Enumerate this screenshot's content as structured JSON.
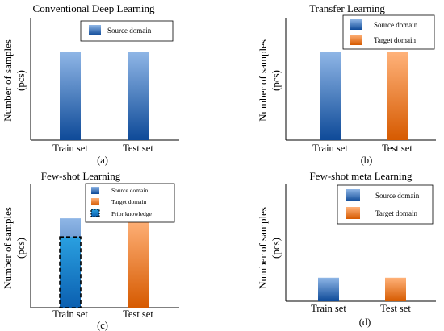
{
  "colors": {
    "source_top": "#8fb6e6",
    "source_bottom": "#0e4a98",
    "target_top": "#ffb27a",
    "target_bottom": "#d65a00",
    "prior_top": "#2aa0e0",
    "prior_bottom": "#0b5fb0"
  },
  "chart_data": [
    {
      "type": "bar",
      "title": "Conventional Deep Learning",
      "panel_label": "(a)",
      "ylabel_line1": "Number of samples",
      "ylabel_line2": "(pcs)",
      "categories": [
        "Train set",
        "Test set"
      ],
      "ylim": [
        0,
        1
      ],
      "legend_position": "top-center",
      "bars": [
        {
          "category": "Train set",
          "domain": "Source domain",
          "value": 0.72
        },
        {
          "category": "Test set",
          "domain": "Source domain",
          "value": 0.72
        }
      ],
      "legend": [
        {
          "label": "Source domain",
          "kind": "source"
        }
      ]
    },
    {
      "type": "bar",
      "title": "Transfer Learning",
      "panel_label": "(b)",
      "ylabel_line1": "Number of samples",
      "ylabel_line2": "(pcs)",
      "categories": [
        "Train set",
        "Test set"
      ],
      "ylim": [
        0,
        1
      ],
      "legend_position": "top-right",
      "bars": [
        {
          "category": "Train set",
          "domain": "Source domain",
          "value": 0.72
        },
        {
          "category": "Test set",
          "domain": "Target domain",
          "value": 0.72
        }
      ],
      "legend": [
        {
          "label": "Source domain",
          "kind": "source"
        },
        {
          "label": "Target domain",
          "kind": "target"
        }
      ]
    },
    {
      "type": "bar",
      "title": "Few-shot Learning",
      "panel_label": "(c)",
      "ylabel_line1": "Number of samples",
      "ylabel_line2": "(pcs)",
      "categories": [
        "Train set",
        "Test set"
      ],
      "ylim": [
        0,
        1
      ],
      "legend_position": "top-center",
      "bars": [
        {
          "category": "Train set",
          "domain": "Source domain",
          "value": 0.72,
          "prior_knowledge": 0.57
        },
        {
          "category": "Test set",
          "domain": "Target domain",
          "value": 0.72
        }
      ],
      "legend": [
        {
          "label": "Source domain",
          "kind": "source"
        },
        {
          "label": "Target domain",
          "kind": "target"
        },
        {
          "label": "Prior knowledge",
          "kind": "prior"
        }
      ]
    },
    {
      "type": "bar",
      "title": "Few-shot meta Learning",
      "panel_label": "(d)",
      "ylabel_line1": "Number of samples",
      "ylabel_line2": "(pcs)",
      "categories": [
        "Train set",
        "Test set"
      ],
      "ylim": [
        0,
        1
      ],
      "legend_position": "top-center",
      "bars": [
        {
          "category": "Train set",
          "domain": "Source domain",
          "value": 0.2
        },
        {
          "category": "Test set",
          "domain": "Target domain",
          "value": 0.2
        }
      ],
      "legend": [
        {
          "label": "Source domain",
          "kind": "source"
        },
        {
          "label": "Target domain",
          "kind": "target"
        }
      ]
    }
  ]
}
